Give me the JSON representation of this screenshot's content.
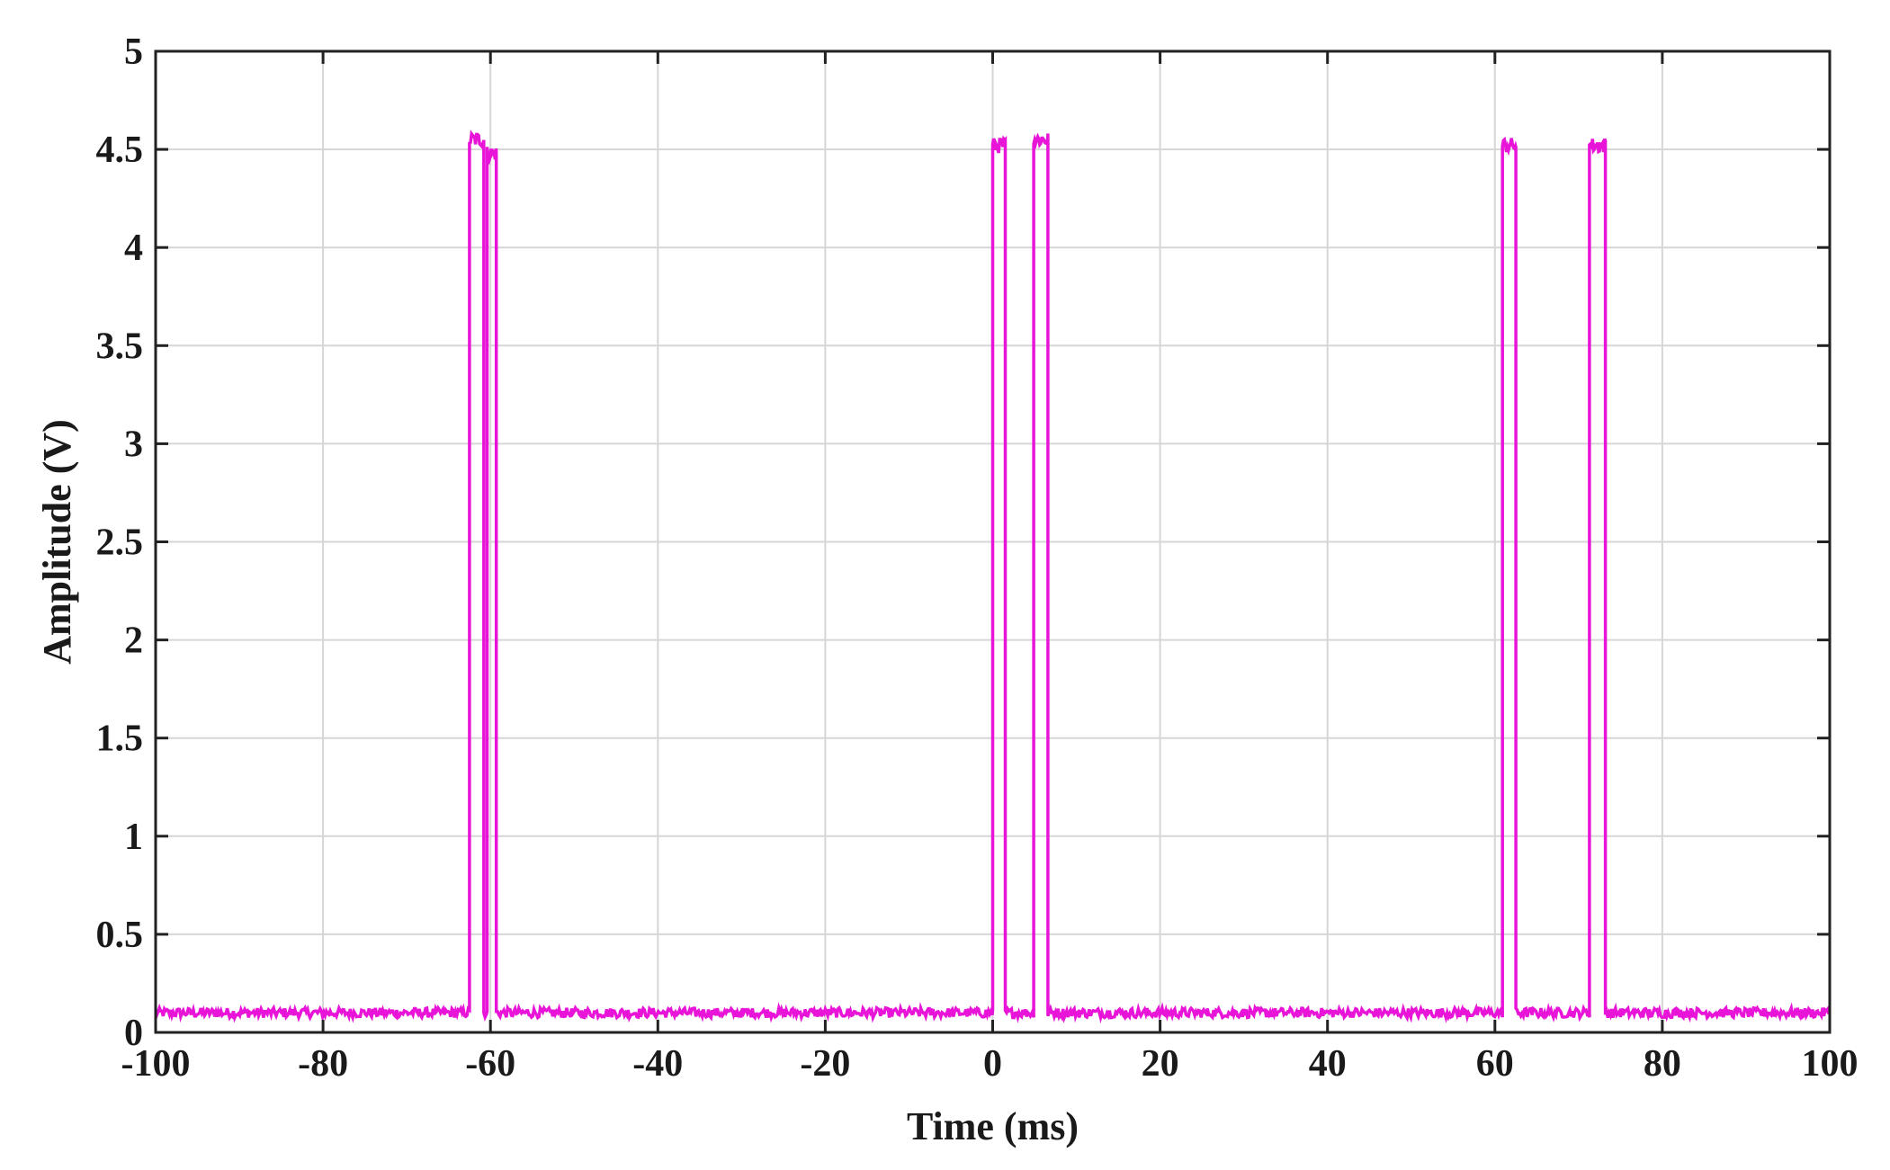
{
  "chart_data": {
    "type": "line",
    "title": "",
    "xlabel": "Time (ms)",
    "ylabel": "Amplitude (V)",
    "xlim": [
      -100,
      100
    ],
    "ylim": [
      0,
      5
    ],
    "xticks": [
      "-100",
      "-80",
      "-60",
      "-40",
      "-20",
      "0",
      "20",
      "40",
      "60",
      "80",
      "100"
    ],
    "yticks": [
      "0",
      "0.5",
      "1",
      "1.5",
      "2",
      "2.5",
      "3",
      "3.5",
      "4",
      "4.5",
      "5"
    ],
    "grid": true,
    "legend": "none",
    "colors": {
      "series": "#e815d8",
      "axis": "#222222",
      "grid": "#d6d6d6"
    },
    "series": [
      {
        "baseline": 0.1,
        "high": 4.5,
        "pulses": [
          {
            "start": -62.5,
            "end": -60.8,
            "level": 4.55
          },
          {
            "start": -60.4,
            "end": -59.3,
            "level": 4.48
          },
          {
            "start": 0.0,
            "end": 1.5,
            "level": 4.52
          },
          {
            "start": 4.9,
            "end": 6.6,
            "level": 4.55
          },
          {
            "start": 60.9,
            "end": 62.5,
            "level": 4.52
          },
          {
            "start": 71.3,
            "end": 73.2,
            "level": 4.52
          }
        ]
      }
    ]
  }
}
